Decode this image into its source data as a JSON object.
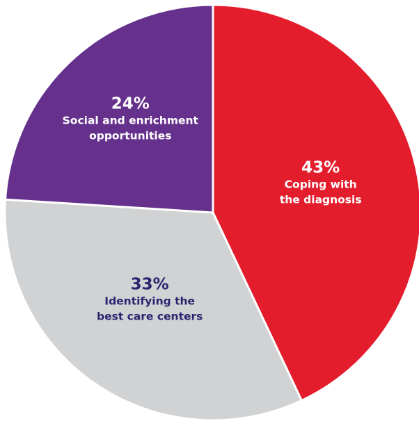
{
  "chart_data": {
    "type": "pie",
    "slices": [
      {
        "key": "coping",
        "value": 43,
        "percent_label": "43%",
        "label_lines": [
          "Coping with",
          "the diagnosis"
        ],
        "color": "#e41d2d",
        "text_color": "#ffffff"
      },
      {
        "key": "care-centers",
        "value": 33,
        "percent_label": "33%",
        "label_lines": [
          "Identifying the",
          "best care centers"
        ],
        "color": "#d0d2d3",
        "text_color": "#2d2470"
      },
      {
        "key": "social",
        "value": 24,
        "percent_label": "24%",
        "label_lines": [
          "Social and enrichment",
          "opportunities"
        ],
        "color": "#66308d",
        "text_color": "#ffffff"
      }
    ],
    "start": "top",
    "direction": "clockwise",
    "border_color": "#ffffff"
  }
}
